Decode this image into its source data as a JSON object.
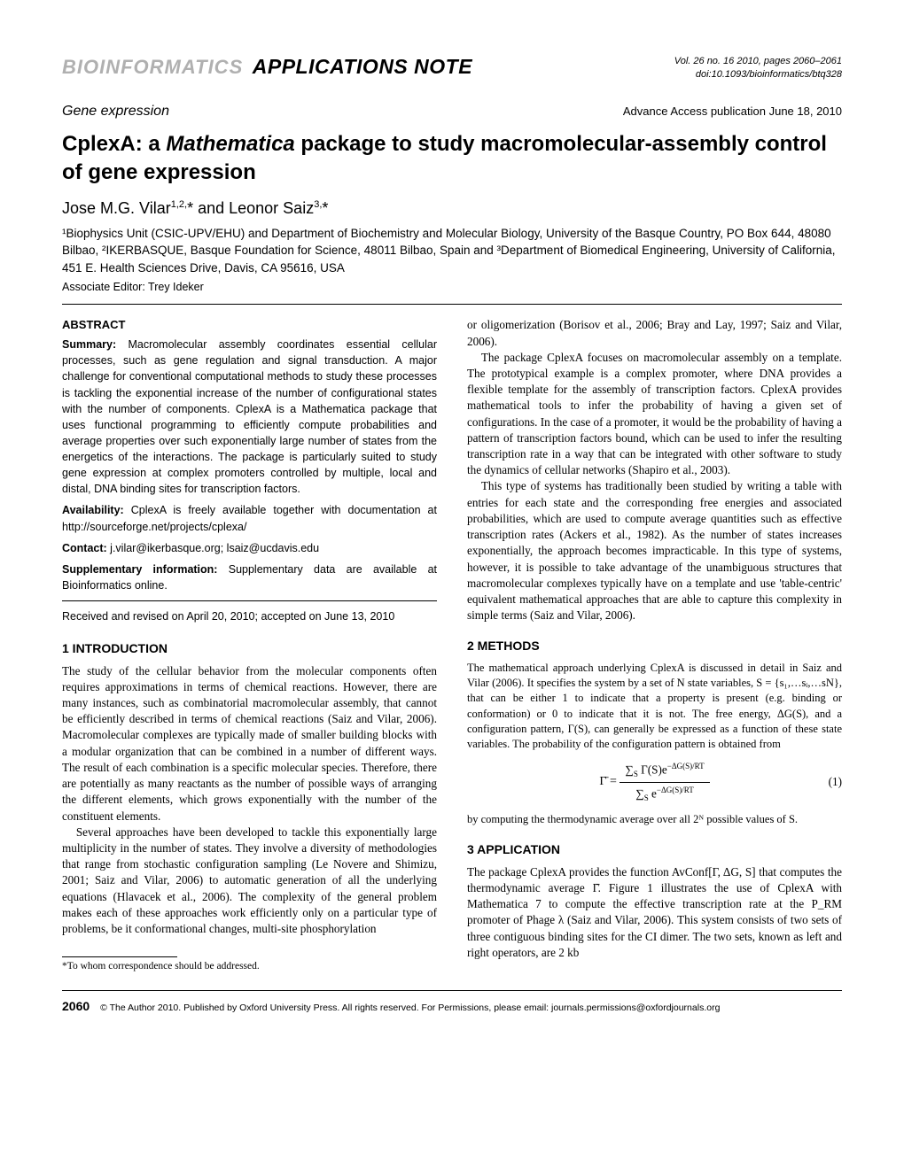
{
  "header": {
    "journal": "BIOINFORMATICS",
    "note_type": "APPLICATIONS NOTE",
    "vol_line1": "Vol. 26 no. 16 2010, pages 2060–2061",
    "vol_line2": "doi:10.1093/bioinformatics/btq328",
    "section": "Gene expression",
    "advance": "Advance Access publication June 18, 2010"
  },
  "article": {
    "title_pre": "CplexA: a ",
    "title_ital": "Mathematica",
    "title_post": " package to study macromolecular-assembly control of gene expression",
    "authors_html": "Jose M.G. Vilar",
    "authors_sup1": "1,2,",
    "authors_ast": "*",
    "authors_and": " and Leonor Saiz",
    "authors_sup2": "3,",
    "affil": "¹Biophysics Unit (CSIC-UPV/EHU) and Department of Biochemistry and Molecular Biology, University of the Basque Country, PO Box 644, 48080 Bilbao, ²IKERBASQUE, Basque Foundation for Science, 48011 Bilbao, Spain and ³Department of Biomedical Engineering, University of California, 451 E. Health Sciences Drive, Davis, CA 95616, USA",
    "editor": "Associate Editor: Trey Ideker"
  },
  "abstract": {
    "heading": "ABSTRACT",
    "summary_label": "Summary:",
    "summary": " Macromolecular assembly coordinates essential cellular processes, such as gene regulation and signal transduction. A major challenge for conventional computational methods to study these processes is tackling the exponential increase of the number of configurational states with the number of components. CplexA is a Mathematica package that uses functional programming to efficiently compute probabilities and average properties over such exponentially large number of states from the energetics of the interactions. The package is particularly suited to study gene expression at complex promoters controlled by multiple, local and distal, DNA binding sites for transcription factors.",
    "avail_label": "Availability:",
    "avail": " CplexA is freely available together with documentation at http://sourceforge.net/projects/cplexa/",
    "contact_label": "Contact:",
    "contact": " j.vilar@ikerbasque.org; lsaiz@ucdavis.edu",
    "supp_label": "Supplementary information:",
    "supp": " Supplementary data are available at Bioinformatics online.",
    "received": "Received and revised on April 20, 2010; accepted on June 13, 2010"
  },
  "sections": {
    "intro_heading": "1   INTRODUCTION",
    "intro_p1": "The study of the cellular behavior from the molecular components often requires approximations in terms of chemical reactions. However, there are many instances, such as combinatorial macromolecular assembly, that cannot be efficiently described in terms of chemical reactions (Saiz and Vilar, 2006). Macromolecular complexes are typically made of smaller building blocks with a modular organization that can be combined in a number of different ways. The result of each combination is a specific molecular species. Therefore, there are potentially as many reactants as the number of possible ways of arranging the different elements, which grows exponentially with the number of the constituent elements.",
    "intro_p2": "Several approaches have been developed to tackle this exponentially large multiplicity in the number of states. They involve a diversity of methodologies that range from stochastic configuration sampling (Le Novere and Shimizu, 2001; Saiz and Vilar, 2006) to automatic generation of all the underlying equations (Hlavacek et al., 2006). The complexity of the general problem makes each of these approaches work efficiently only on a particular type of problems, be it conformational changes, multi-site phosphorylation",
    "col2_p1": "or oligomerization (Borisov et al., 2006; Bray and Lay, 1997; Saiz and Vilar, 2006).",
    "col2_p2": "The package CplexA focuses on macromolecular assembly on a template. The prototypical example is a complex promoter, where DNA provides a flexible template for the assembly of transcription factors. CplexA provides mathematical tools to infer the probability of having a given set of configurations. In the case of a promoter, it would be the probability of having a pattern of transcription factors bound, which can be used to infer the resulting transcription rate in a way that can be integrated with other software to study the dynamics of cellular networks (Shapiro et al., 2003).",
    "col2_p3": "This type of systems has traditionally been studied by writing a table with entries for each state and the corresponding free energies and associated probabilities, which are used to compute average quantities such as effective transcription rates (Ackers et al., 1982). As the number of states increases exponentially, the approach becomes impracticable. In this type of systems, however, it is possible to take advantage of the unambiguous structures that macromolecular complexes typically have on a template and use 'table-centric' equivalent mathematical approaches that are able to capture this complexity in simple terms (Saiz and Vilar, 2006).",
    "methods_heading": "2   METHODS",
    "methods_p1": "The mathematical approach underlying CplexA is discussed in detail in Saiz and Vilar (2006). It specifies the system by a set of N state variables, S = {s₁,…sᵢ,…sN}, that can be either 1 to indicate that a property is present (e.g. binding or conformation) or 0 to indicate that it is not. The free energy, ΔG(S), and a configuration pattern, Γ(S), can generally be expressed as a function of these state variables. The probability of the configuration pattern is obtained from",
    "eq_num": "(1)",
    "methods_p2": "by computing the thermodynamic average over all 2ᴺ possible values of S.",
    "app_heading": "3   APPLICATION",
    "app_p1": "The package CplexA provides the function AvConf[Γ, ΔG, S] that computes the thermodynamic average Γ̄. Figure 1 illustrates the use of CplexA with Mathematica 7 to compute the effective transcription rate at the P_RM promoter of Phage λ (Saiz and Vilar, 2006). This system consists of two sets of three contiguous binding sites for the CI dimer. The two sets, known as left and right operators, are 2 kb"
  },
  "footnote": "*To whom correspondence should be addressed.",
  "footer": {
    "page": "2060",
    "copyright": "© The Author 2010. Published by Oxford University Press. All rights reserved. For Permissions, please email: journals.permissions@oxfordjournals.org"
  },
  "colors": {
    "journal_gray": "#b0b0b0",
    "text": "#000000",
    "bg": "#ffffff"
  }
}
